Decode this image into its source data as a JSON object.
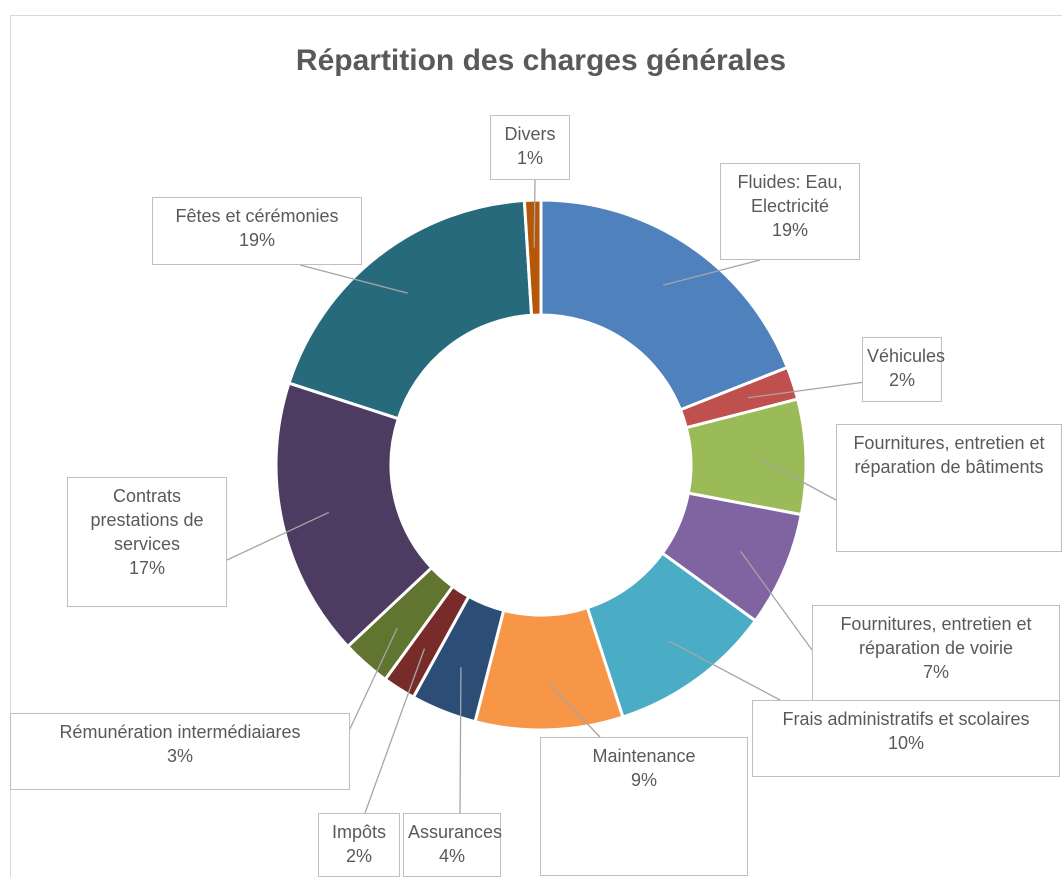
{
  "chart_data": {
    "type": "donut",
    "title": "Répartition des charges générales",
    "categories": [
      "Fluides: Eau, Electricité",
      "Véhicules",
      "Fournitures, entretien et réparation de bâtiments",
      "Fournitures, entretien et réparation de voirie",
      "Frais administratifs et scolaires",
      "Maintenance",
      "Assurances",
      "Impôts",
      "Rémunération intermédiaiares",
      "Contrats prestations de services",
      "Fêtes et cérémonies",
      "Divers"
    ],
    "values": [
      19,
      2,
      7,
      7,
      10,
      9,
      4,
      2,
      3,
      17,
      19,
      1
    ],
    "value_labels": [
      "19%",
      "2%",
      null,
      "7%",
      "10%",
      "9%",
      "4%",
      "2%",
      "3%",
      "17%",
      "19%",
      "1%"
    ],
    "colors": [
      "#4f81bd",
      "#c0504d",
      "#9bbb59",
      "#8064a2",
      "#4bacc6",
      "#f79646",
      "#2c4d75",
      "#772c2a",
      "#5f7530",
      "#4d3b62",
      "#276a7c",
      "#b65708"
    ]
  }
}
